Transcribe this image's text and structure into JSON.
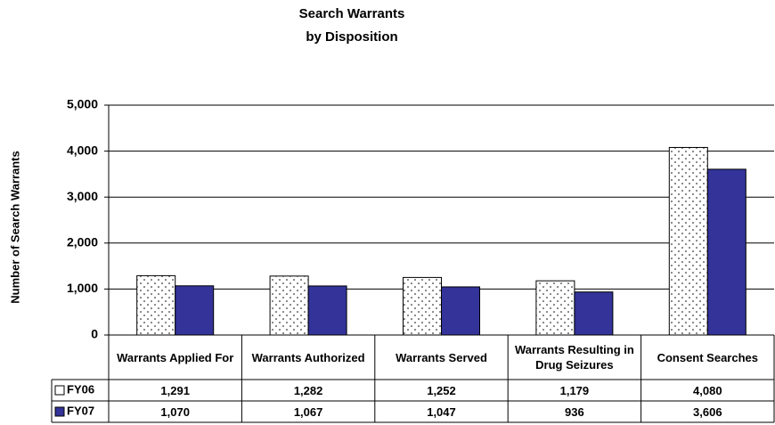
{
  "chart_data": {
    "type": "bar",
    "title": "Search Warrants",
    "subtitle": "by Disposition",
    "y_label": "Number of Search Warrants",
    "categories": [
      "Warrants Applied For",
      "Warrants Authorized",
      "Warrants Served",
      "Warrants Resulting in Drug Seizures",
      "Consent Searches"
    ],
    "series": [
      {
        "name": "FY06",
        "color": "#ffffff",
        "pattern": "dots",
        "values": [
          1291,
          1282,
          1252,
          1179,
          4080
        ],
        "value_labels": [
          "1,291",
          "1,282",
          "1,252",
          "1,179",
          "4,080"
        ]
      },
      {
        "name": "FY07",
        "color": "#333399",
        "values": [
          1070,
          1067,
          1047,
          936,
          3606
        ],
        "value_labels": [
          "1,070",
          "1,067",
          "1,047",
          "936",
          "3,606"
        ]
      }
    ],
    "ylim": [
      0,
      5000
    ],
    "yticks": [
      0,
      {
        "value": 1000,
        "label": "1,000"
      },
      {
        "value": 2000,
        "label": "2,000"
      },
      {
        "value": 3000,
        "label": "3,000"
      },
      {
        "value": 4000,
        "label": "4,000"
      },
      {
        "value": 5000,
        "label": "5,000"
      }
    ],
    "grid": true
  }
}
